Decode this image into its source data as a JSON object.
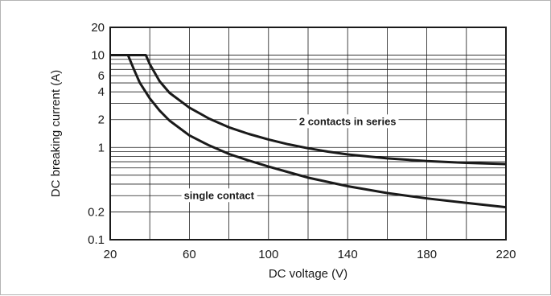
{
  "chart_data": {
    "type": "line",
    "title": "",
    "xlabel": "DC voltage (V)",
    "ylabel": "DC breaking current (A)",
    "xlim": [
      20,
      220
    ],
    "ylim": [
      0.1,
      20
    ],
    "yscale": "log",
    "grid": true,
    "x_ticks": [
      20,
      60,
      100,
      140,
      180,
      220
    ],
    "x_tick_labels": [
      "20",
      "60",
      "100",
      "140",
      "180",
      "220"
    ],
    "y_ticks": [
      0.1,
      0.2,
      1,
      2,
      4,
      6,
      10,
      20
    ],
    "y_tick_labels": [
      "0.1",
      "0.2",
      "1",
      "2",
      "4",
      "6",
      "10",
      "20"
    ],
    "series": [
      {
        "name": "2 contacts in series",
        "x": [
          20,
          30,
          38,
          40,
          45,
          50,
          60,
          70,
          80,
          90,
          100,
          110,
          120,
          130,
          140,
          160,
          180,
          200,
          220
        ],
        "y": [
          10,
          10,
          10,
          8.0,
          5.2,
          3.9,
          2.7,
          2.05,
          1.65,
          1.4,
          1.22,
          1.08,
          0.98,
          0.9,
          0.84,
          0.76,
          0.71,
          0.68,
          0.66
        ]
      },
      {
        "name": "single contact",
        "x": [
          20,
          25,
          29,
          32,
          35,
          40,
          45,
          50,
          60,
          70,
          80,
          90,
          100,
          110,
          120,
          140,
          160,
          180,
          200,
          220
        ],
        "y": [
          10,
          10,
          10,
          7.0,
          5.0,
          3.4,
          2.5,
          1.95,
          1.35,
          1.05,
          0.85,
          0.72,
          0.62,
          0.54,
          0.47,
          0.38,
          0.32,
          0.28,
          0.25,
          0.225
        ]
      }
    ],
    "annotations": [
      {
        "text": "2 contacts in series",
        "x": 140,
        "y": 1.9
      },
      {
        "text": "single contact",
        "x": 75,
        "y": 0.3
      }
    ]
  }
}
